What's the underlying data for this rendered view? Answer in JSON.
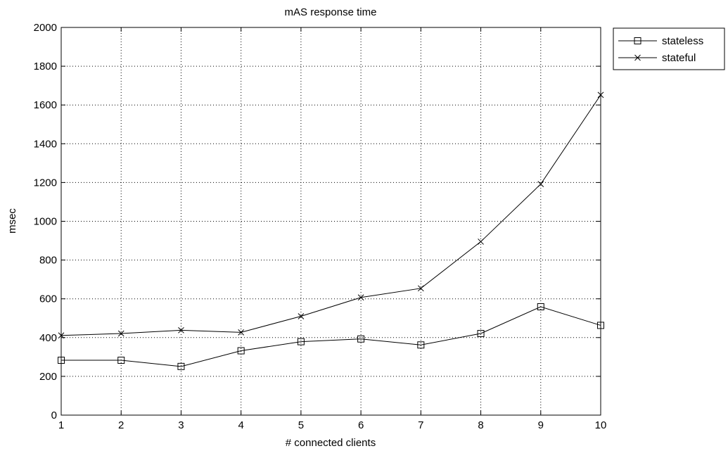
{
  "chart_data": {
    "type": "line",
    "title": "mAS response time",
    "xlabel": "# connected clients",
    "ylabel": "msec",
    "x": [
      1,
      2,
      3,
      4,
      5,
      6,
      7,
      8,
      9,
      10
    ],
    "xlim": [
      1,
      10
    ],
    "ylim": [
      0,
      2000
    ],
    "xticks": [
      "1",
      "2",
      "3",
      "4",
      "5",
      "6",
      "7",
      "8",
      "9",
      "10"
    ],
    "yticks": [
      "0",
      "200",
      "400",
      "600",
      "800",
      "1000",
      "1200",
      "1400",
      "1600",
      "1800",
      "2000"
    ],
    "grid": true,
    "legend_position": "outside-top-right",
    "series": [
      {
        "name": "stateless",
        "marker": "square",
        "color": "#000000",
        "values": [
          283,
          283,
          251,
          332,
          379,
          393,
          362,
          421,
          559,
          463
        ]
      },
      {
        "name": "stateful",
        "marker": "x",
        "color": "#000000",
        "values": [
          411,
          421,
          438,
          427,
          510,
          607,
          654,
          895,
          1192,
          1652
        ]
      }
    ]
  }
}
